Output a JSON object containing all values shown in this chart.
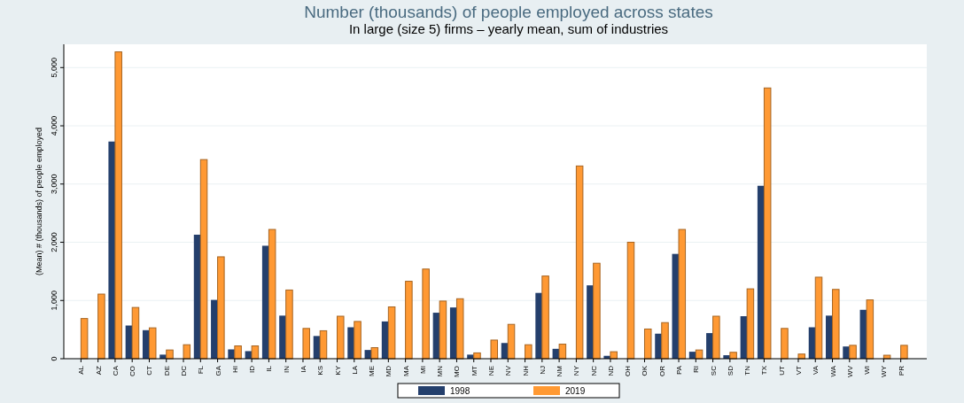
{
  "chart_data": {
    "type": "bar",
    "title": "Number (thousands) of people employed across states",
    "subtitle": "In large (size 5) firms – yearly mean, sum of industries",
    "ylabel": "(Mean) # (thousands) of people employed",
    "categories": [
      "AL",
      "AZ",
      "CA",
      "CO",
      "CT",
      "DE",
      "DC",
      "FL",
      "GA",
      "HI",
      "ID",
      "IL",
      "IN",
      "IA",
      "KS",
      "KY",
      "LA",
      "ME",
      "MD",
      "MA",
      "MI",
      "MN",
      "MO",
      "MT",
      "NE",
      "NV",
      "NH",
      "NJ",
      "NM",
      "NY",
      "NC",
      "ND",
      "OH",
      "OK",
      "OR",
      "PA",
      "RI",
      "SC",
      "SD",
      "TN",
      "TX",
      "UT",
      "VT",
      "VA",
      "WA",
      "WV",
      "WI",
      "WY",
      "PR"
    ],
    "series": [
      {
        "name": "1998",
        "color": "#243f6c",
        "values": [
          null,
          null,
          3730,
          570,
          490,
          70,
          null,
          2130,
          1010,
          160,
          130,
          1940,
          740,
          null,
          390,
          null,
          540,
          150,
          640,
          null,
          null,
          790,
          880,
          70,
          null,
          270,
          null,
          1130,
          170,
          null,
          1260,
          50,
          null,
          null,
          430,
          1800,
          120,
          440,
          60,
          730,
          2970,
          null,
          null,
          540,
          740,
          210,
          840,
          null,
          null
        ]
      },
      {
        "name": "2019",
        "color": "#ff9933",
        "values": [
          690,
          1110,
          5270,
          880,
          530,
          150,
          240,
          3420,
          1750,
          220,
          220,
          2220,
          1180,
          520,
          480,
          730,
          640,
          190,
          890,
          1330,
          1540,
          990,
          1030,
          100,
          320,
          590,
          240,
          1420,
          250,
          3310,
          1640,
          120,
          2000,
          510,
          620,
          2220,
          150,
          730,
          110,
          1200,
          4650,
          520,
          80,
          1400,
          1190,
          230,
          1010,
          60,
          230
        ]
      }
    ],
    "ylim": [
      0,
      5400
    ],
    "yticks": [
      0,
      {
        "value": 1000,
        "label": "1,000"
      },
      {
        "value": 2000,
        "label": "2,000"
      },
      {
        "value": 3000,
        "label": "3,000"
      },
      {
        "value": 4000,
        "label": "4,000"
      },
      {
        "value": 5000,
        "label": "5,000"
      }
    ],
    "grid": "y",
    "legend": "bottom"
  }
}
